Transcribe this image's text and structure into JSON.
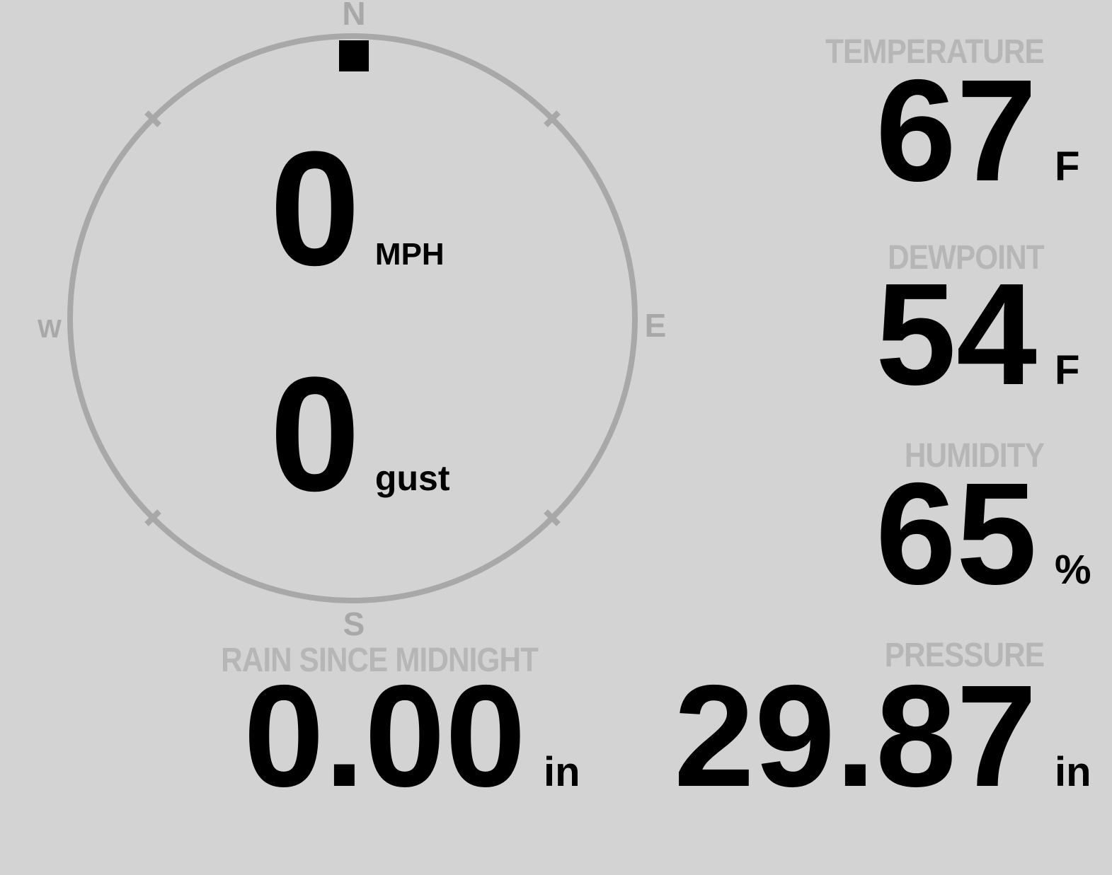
{
  "theme": {
    "background": "#d3d3d4",
    "label_gray": "#b6b6b6",
    "compass_gray": "#a8a8a8",
    "value_black": "#000000"
  },
  "compass": {
    "cardinals": {
      "north": "N",
      "south": "S",
      "east": "E",
      "west": "W"
    },
    "wind_direction_deg": 0,
    "speed": {
      "value": "0",
      "unit": "MPH"
    },
    "gust": {
      "value": "0",
      "unit": "gust"
    }
  },
  "metrics": {
    "temperature": {
      "label": "TEMPERATURE",
      "value": "67",
      "unit": "F"
    },
    "dewpoint": {
      "label": "DEWPOINT",
      "value": "54",
      "unit": "F"
    },
    "humidity": {
      "label": "HUMIDITY",
      "value": "65",
      "unit": "%"
    },
    "rain": {
      "label": "RAIN SINCE MIDNIGHT",
      "value": "0.00",
      "unit": "in"
    },
    "pressure": {
      "label": "PRESSURE",
      "value": "29.87",
      "unit": "in"
    }
  }
}
